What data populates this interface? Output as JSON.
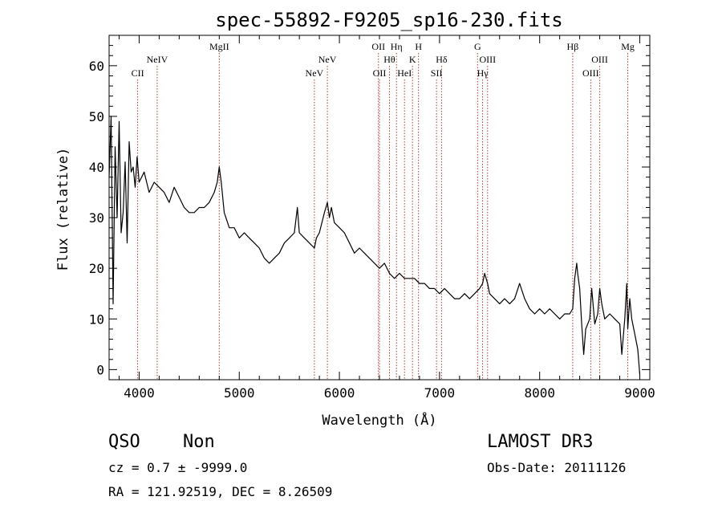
{
  "colors": {
    "spectrum": "#000000",
    "line_marker": "#b03a2e",
    "axis": "#000000",
    "background": "#ffffff"
  },
  "chart_data": {
    "type": "line",
    "title": "spec-55892-F9205_sp16-230.fits",
    "xlabel": "Wavelength (Å)",
    "ylabel": "Flux (relative)",
    "xlim": [
      3700,
      9100
    ],
    "ylim": [
      -2,
      66
    ],
    "xticks": [
      4000,
      5000,
      6000,
      7000,
      8000,
      9000
    ],
    "yticks": [
      0,
      10,
      20,
      30,
      40,
      50,
      60
    ],
    "series": [
      {
        "name": "flux",
        "x": [
          3700,
          3720,
          3740,
          3760,
          3780,
          3800,
          3820,
          3840,
          3860,
          3880,
          3900,
          3920,
          3940,
          3960,
          3980,
          4000,
          4050,
          4100,
          4150,
          4200,
          4250,
          4300,
          4350,
          4400,
          4450,
          4500,
          4550,
          4600,
          4650,
          4700,
          4750,
          4780,
          4800,
          4820,
          4850,
          4900,
          4950,
          5000,
          5050,
          5100,
          5150,
          5200,
          5250,
          5300,
          5350,
          5400,
          5450,
          5500,
          5550,
          5580,
          5600,
          5650,
          5700,
          5750,
          5770,
          5800,
          5850,
          5880,
          5900,
          5920,
          5950,
          6000,
          6050,
          6100,
          6150,
          6200,
          6250,
          6300,
          6350,
          6400,
          6450,
          6500,
          6550,
          6600,
          6650,
          6700,
          6750,
          6800,
          6850,
          6900,
          6950,
          7000,
          7050,
          7100,
          7150,
          7200,
          7250,
          7300,
          7350,
          7400,
          7430,
          7450,
          7480,
          7500,
          7550,
          7600,
          7650,
          7700,
          7750,
          7800,
          7850,
          7900,
          7950,
          8000,
          8050,
          8100,
          8150,
          8200,
          8250,
          8300,
          8330,
          8350,
          8370,
          8380,
          8400,
          8420,
          8440,
          8460,
          8500,
          8520,
          8550,
          8580,
          8600,
          8620,
          8650,
          8700,
          8750,
          8800,
          8820,
          8850,
          8870,
          8880,
          8900,
          8920,
          8950,
          8980,
          9000
        ],
        "y": [
          38,
          50,
          13,
          44,
          30,
          49,
          27,
          31,
          41,
          25,
          45,
          39,
          40,
          36,
          42,
          37,
          39,
          35,
          37,
          36,
          35,
          33,
          36,
          34,
          32,
          31,
          31,
          32,
          32,
          33,
          35,
          37,
          40,
          37,
          31,
          28,
          28,
          26,
          27,
          26,
          25,
          24,
          22,
          21,
          22,
          23,
          25,
          26,
          27,
          32,
          27,
          26,
          25,
          24,
          26,
          27,
          31,
          33,
          30,
          32,
          29,
          28,
          27,
          25,
          23,
          24,
          23,
          22,
          21,
          20,
          21,
          19,
          18,
          19,
          18,
          18,
          18,
          17,
          17,
          16,
          16,
          15,
          16,
          15,
          14,
          14,
          15,
          14,
          15,
          16,
          17,
          19,
          17,
          15,
          14,
          13,
          14,
          13,
          14,
          17,
          14,
          12,
          11,
          12,
          11,
          12,
          11,
          10,
          11,
          11,
          12,
          18,
          21,
          19,
          16,
          9,
          3,
          8,
          10,
          16,
          9,
          11,
          16,
          13,
          10,
          11,
          10,
          9,
          3,
          10,
          17,
          8,
          14,
          10,
          7,
          4,
          -1
        ]
      }
    ],
    "line_markers": [
      {
        "label": "CII",
        "x": 3985,
        "tier": "lower"
      },
      {
        "label": "NeIV",
        "x": 4180,
        "tier": "upper"
      },
      {
        "label": "MgII",
        "x": 4800,
        "tier": "top"
      },
      {
        "label": "NeV",
        "x": 5750,
        "tier": "lower"
      },
      {
        "label": "NeV",
        "x": 5880,
        "tier": "upper"
      },
      {
        "label": "OII",
        "x": 6390,
        "tier": "top"
      },
      {
        "label": "OII",
        "x": 6400,
        "tier": "lower"
      },
      {
        "label": "Hθ",
        "x": 6500,
        "tier": "upper"
      },
      {
        "label": "Hη",
        "x": 6570,
        "tier": "top"
      },
      {
        "label": "HeI",
        "x": 6650,
        "tier": "lower"
      },
      {
        "label": "K",
        "x": 6730,
        "tier": "upper"
      },
      {
        "label": "H",
        "x": 6790,
        "tier": "top"
      },
      {
        "label": "SII",
        "x": 6970,
        "tier": "lower"
      },
      {
        "label": "Hδ",
        "x": 7020,
        "tier": "upper"
      },
      {
        "label": "G",
        "x": 7380,
        "tier": "top"
      },
      {
        "label": "Hγ",
        "x": 7430,
        "tier": "lower"
      },
      {
        "label": "OIII",
        "x": 7480,
        "tier": "upper"
      },
      {
        "label": "Hβ",
        "x": 8330,
        "tier": "top"
      },
      {
        "label": "OIII",
        "x": 8510,
        "tier": "lower"
      },
      {
        "label": "OIII",
        "x": 8600,
        "tier": "upper"
      },
      {
        "label": "Mg",
        "x": 8880,
        "tier": "top"
      }
    ]
  },
  "info": {
    "class_label": "QSO",
    "subclass_label": "Non",
    "survey": "LAMOST DR3",
    "cz_line": "cz = 0.7 ± -9999.0",
    "obs_date": "Obs-Date: 20111126",
    "coords": "RA = 121.92519, DEC =    8.26509"
  }
}
